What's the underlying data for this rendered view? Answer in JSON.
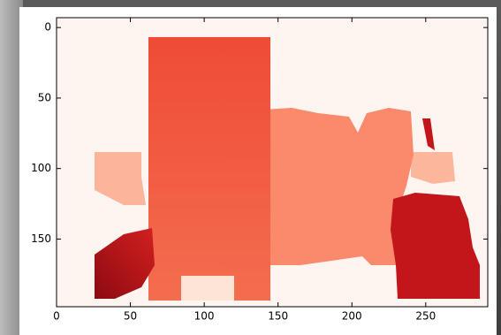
{
  "chart_data": {
    "type": "image",
    "xlim": [
      0,
      292
    ],
    "ylim": [
      198,
      -7
    ],
    "xticks": [
      0,
      50,
      100,
      150,
      200,
      250
    ],
    "yticks": [
      0,
      50,
      100,
      150
    ]
  }
}
